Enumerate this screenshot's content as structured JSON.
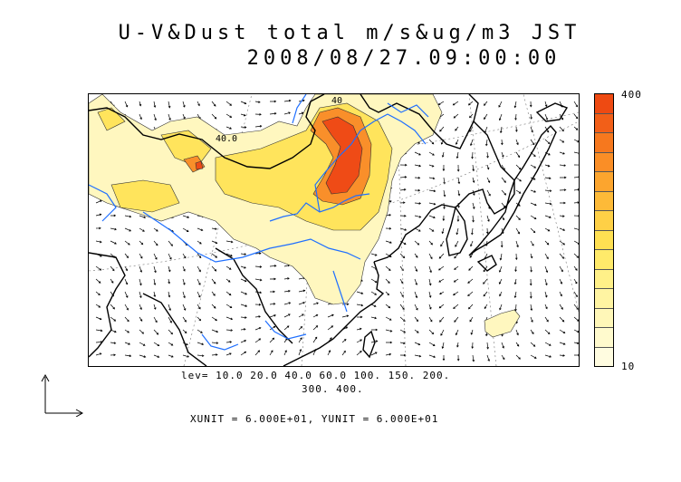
{
  "title_line1": "U-V&Dust total m/s&ug/m3 JST",
  "title_line2": "2008/08/27.09:00:00",
  "contour_levels_line1": "lev= 10.0 20.0 40.0 60.0 100. 150. 200.",
  "contour_levels_line2": "300. 400.",
  "units_line": "XUNIT = 6.000E+01, YUNIT = 6.000E+01",
  "map_contour_labels": [
    "40",
    "40.0"
  ],
  "colorbar": {
    "max_label": "400",
    "min_label": "10",
    "colors": [
      "#ee4a12",
      "#f25f18",
      "#f6781e",
      "#fa8e26",
      "#fca52e",
      "#fdba38",
      "#fed046",
      "#ffe052",
      "#ffea6a",
      "#fff088",
      "#fff4a2",
      "#fff7b8",
      "#fffacd",
      "#fffce0"
    ]
  },
  "colors": {
    "land_outline": "#000000",
    "rivers": "#1f6fff",
    "dust_low": "#fff7bf",
    "dust_mid": "#ffe45c",
    "dust_high": "#f98f2a",
    "dust_peak": "#ef4b16"
  }
}
